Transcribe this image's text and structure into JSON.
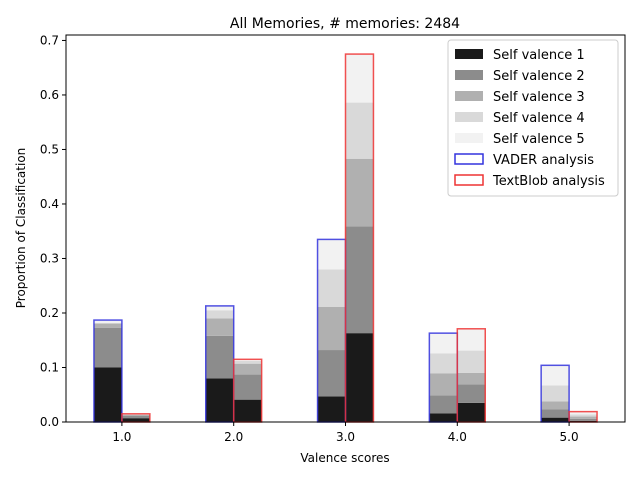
{
  "chart_data": {
    "type": "bar",
    "title": "All Memories, # memories: 2484",
    "xlabel": "Valence scores",
    "ylabel": "Proportion of Classification",
    "x": [
      1.0,
      2.0,
      3.0,
      4.0,
      5.0
    ],
    "x_tick_labels": [
      "1.0",
      "2.0",
      "3.0",
      "4.0",
      "5.0"
    ],
    "xlim": [
      0.5,
      5.5
    ],
    "ylim": [
      0,
      0.71
    ],
    "y_ticks": [
      0.0,
      0.1,
      0.2,
      0.3,
      0.4,
      0.5,
      0.6,
      0.7
    ],
    "y_tick_labels": [
      "0.0",
      "0.1",
      "0.2",
      "0.3",
      "0.4",
      "0.5",
      "0.6",
      "0.7"
    ],
    "legend_position": "top-right",
    "grid": false,
    "series": [
      {
        "name": "Self valence 1",
        "color": "#1a1a1a",
        "vader_stack": [
          0.1,
          0.08,
          0.047,
          0.016,
          0.008
        ],
        "textblob_stack": [
          0.007,
          0.041,
          0.163,
          0.035,
          0.002
        ]
      },
      {
        "name": "Self valence 2",
        "color": "#8c8c8c",
        "vader_stack": [
          0.073,
          0.078,
          0.085,
          0.033,
          0.015
        ],
        "textblob_stack": [
          0.004,
          0.046,
          0.196,
          0.034,
          0.004
        ]
      },
      {
        "name": "Self valence 3",
        "color": "#b0b0b0",
        "vader_stack": [
          0.008,
          0.032,
          0.079,
          0.04,
          0.015
        ],
        "textblob_stack": [
          0.002,
          0.02,
          0.124,
          0.021,
          0.004
        ]
      },
      {
        "name": "Self valence 4",
        "color": "#d9d9d9",
        "vader_stack": [
          0.0,
          0.015,
          0.069,
          0.037,
          0.029
        ],
        "textblob_stack": [
          0.001,
          0.005,
          0.103,
          0.041,
          0.004
        ]
      },
      {
        "name": "Self valence 5",
        "color": "#f2f2f2",
        "vader_stack": [
          0.006,
          0.008,
          0.055,
          0.037,
          0.037
        ],
        "textblob_stack": [
          0.001,
          0.003,
          0.089,
          0.04,
          0.005
        ]
      }
    ],
    "outlines": [
      {
        "name": "VADER analysis",
        "color": "#3333dd",
        "totals": [
          0.187,
          0.213,
          0.335,
          0.163,
          0.104
        ]
      },
      {
        "name": "TextBlob analysis",
        "color": "#ee3333",
        "totals": [
          0.015,
          0.115,
          0.675,
          0.171,
          0.019
        ]
      }
    ]
  }
}
